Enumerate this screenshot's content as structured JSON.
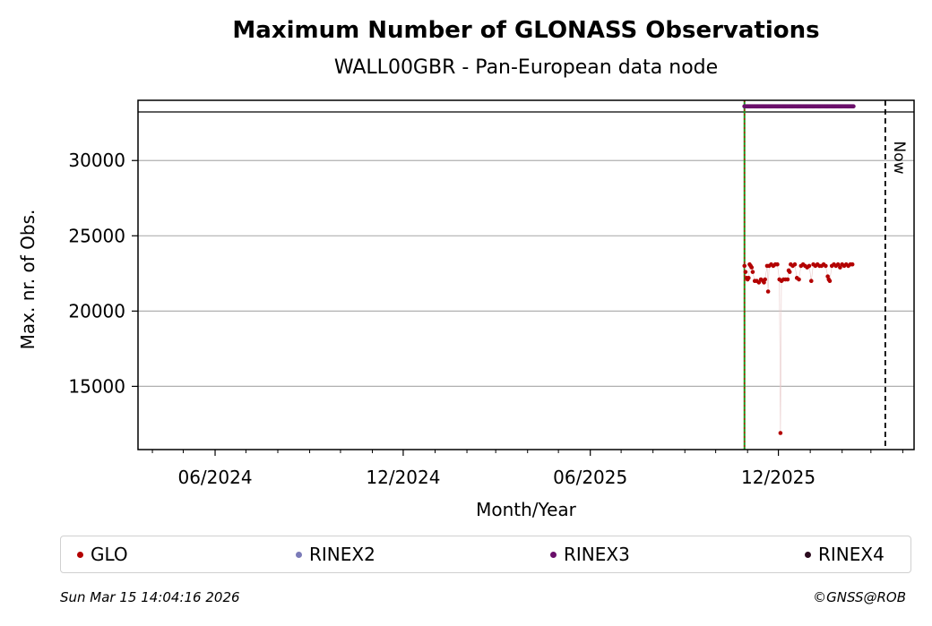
{
  "chart_data": {
    "type": "scatter",
    "title": "Maximum Number of GLONASS Observations",
    "subtitle": "WALL00GBR - Pan-European data node",
    "xlabel": "Month/Year",
    "ylabel": "Max. nr. of Obs.",
    "x_ticks": [
      "06/2024",
      "12/2024",
      "06/2025",
      "12/2025"
    ],
    "y_ticks": [
      15000,
      20000,
      25000,
      30000
    ],
    "ylim": [
      10800,
      34000
    ],
    "xlim": [
      "2024-03-18",
      "2026-04-12"
    ],
    "grid": "y",
    "now_label": "Now",
    "now_date": "2026-03-15",
    "vline_date": "2025-10-29",
    "series": [
      {
        "name": "GLO",
        "color": "#b30000",
        "points": [
          [
            "2025-10-29",
            23000
          ],
          [
            "2025-10-30",
            22600
          ],
          [
            "2025-10-31",
            22200
          ],
          [
            "2025-11-01",
            22100
          ],
          [
            "2025-11-02",
            22200
          ],
          [
            "2025-11-03",
            23100
          ],
          [
            "2025-11-04",
            23000
          ],
          [
            "2025-11-05",
            22900
          ],
          [
            "2025-11-06",
            22600
          ],
          [
            "2025-11-08",
            22000
          ],
          [
            "2025-11-10",
            22000
          ],
          [
            "2025-11-12",
            21900
          ],
          [
            "2025-11-14",
            22100
          ],
          [
            "2025-11-16",
            22000
          ],
          [
            "2025-11-17",
            21900
          ],
          [
            "2025-11-18",
            22100
          ],
          [
            "2025-11-20",
            23000
          ],
          [
            "2025-11-21",
            21300
          ],
          [
            "2025-11-22",
            23000
          ],
          [
            "2025-11-24",
            23100
          ],
          [
            "2025-11-26",
            23000
          ],
          [
            "2025-11-28",
            23100
          ],
          [
            "2025-11-30",
            23100
          ],
          [
            "2025-12-02",
            22100
          ],
          [
            "2025-12-03",
            11900
          ],
          [
            "2025-12-04",
            22000
          ],
          [
            "2025-12-06",
            22100
          ],
          [
            "2025-12-08",
            22100
          ],
          [
            "2025-12-10",
            22100
          ],
          [
            "2025-12-11",
            22700
          ],
          [
            "2025-12-12",
            22600
          ],
          [
            "2025-12-13",
            23100
          ],
          [
            "2025-12-15",
            23000
          ],
          [
            "2025-12-17",
            23100
          ],
          [
            "2025-12-19",
            22200
          ],
          [
            "2025-12-21",
            22100
          ],
          [
            "2025-12-23",
            23000
          ],
          [
            "2025-12-25",
            23100
          ],
          [
            "2025-12-27",
            23000
          ],
          [
            "2025-12-29",
            22900
          ],
          [
            "2025-12-31",
            23000
          ],
          [
            "2026-01-02",
            22000
          ],
          [
            "2026-01-04",
            23100
          ],
          [
            "2026-01-06",
            23000
          ],
          [
            "2026-01-08",
            23100
          ],
          [
            "2026-01-10",
            23000
          ],
          [
            "2026-01-12",
            23000
          ],
          [
            "2026-01-14",
            23100
          ],
          [
            "2026-01-16",
            23000
          ],
          [
            "2026-01-18",
            22300
          ],
          [
            "2026-01-19",
            22100
          ],
          [
            "2026-01-20",
            22000
          ],
          [
            "2026-01-22",
            23000
          ],
          [
            "2026-01-24",
            23100
          ],
          [
            "2026-01-26",
            23000
          ],
          [
            "2026-01-28",
            23100
          ],
          [
            "2026-01-30",
            22900
          ],
          [
            "2026-02-01",
            23100
          ],
          [
            "2026-02-03",
            23000
          ],
          [
            "2026-02-05",
            23100
          ],
          [
            "2026-02-07",
            23000
          ],
          [
            "2026-02-09",
            23100
          ],
          [
            "2026-02-11",
            23100
          ]
        ]
      },
      {
        "name": "RINEX2",
        "color": "#7b7bb8",
        "points": []
      },
      {
        "name": "RINEX3",
        "color": "#6a0f6a",
        "constant_y": 33600,
        "range": [
          "2025-10-29",
          "2026-02-12"
        ]
      },
      {
        "name": "RINEX4",
        "color": "#2a0a1e",
        "points": []
      }
    ]
  },
  "footer": {
    "timestamp": "Sun Mar 15 14:04:16 2026",
    "copyright": "©GNSS@ROB"
  }
}
